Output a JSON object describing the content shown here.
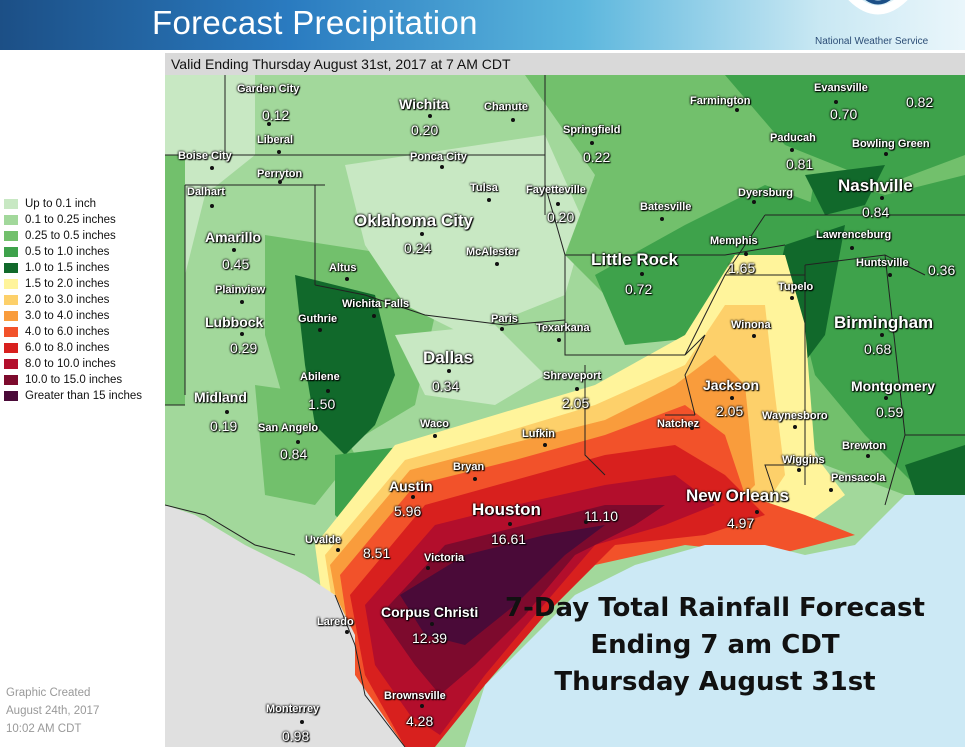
{
  "header": {
    "title": "Forecast Precipitation",
    "agency": "National Weather Service"
  },
  "valid_time": "Valid Ending Thursday August 31st, 2017 at 7 AM CDT",
  "legend": [
    {
      "label": "Up to 0.1 inch",
      "color": "#c8e8c3"
    },
    {
      "label": "0.1 to 0.25 inches",
      "color": "#a2d89b"
    },
    {
      "label": "0.25 to 0.5 inches",
      "color": "#72c06c"
    },
    {
      "label": "0.5 to 1.0 inches",
      "color": "#3ea24b"
    },
    {
      "label": "1.0 to 1.5 inches",
      "color": "#11692b"
    },
    {
      "label": "1.5 to 2.0 inches",
      "color": "#fff49b"
    },
    {
      "label": "2.0 to 3.0 inches",
      "color": "#fdd06a"
    },
    {
      "label": "3.0 to 4.0 inches",
      "color": "#f99c3c"
    },
    {
      "label": "4.0 to 6.0 inches",
      "color": "#f2522a"
    },
    {
      "label": "6.0 to 8.0 inches",
      "color": "#d8201e"
    },
    {
      "label": "8.0 to 10.0 inches",
      "color": "#b30e2c"
    },
    {
      "label": "10.0 to 15.0 inches",
      "color": "#7d0a2d"
    },
    {
      "label": "Greater than 15 inches",
      "color": "#4a0a38"
    }
  ],
  "created": [
    "Graphic Created",
    "August 24th, 2017",
    "10:02 AM CDT"
  ],
  "overlay": [
    "7-Day Total Rainfall Forecast",
    "Ending 7 am CDT",
    "Thursday August 31st"
  ],
  "cities": [
    {
      "name": "Garden City",
      "value": "0.12",
      "size": "small"
    },
    {
      "name": "Wichita",
      "value": "0.20",
      "size": "med"
    },
    {
      "name": "Chanute",
      "value": "",
      "size": "small"
    },
    {
      "name": "Farmington",
      "value": "",
      "size": "small"
    },
    {
      "name": "Evansville",
      "value": "0.70",
      "size": "small"
    },
    {
      "name": "",
      "value": "0.82",
      "size": "small"
    },
    {
      "name": "Springfield",
      "value": "0.22",
      "size": "small"
    },
    {
      "name": "Liberal",
      "value": "",
      "size": "small"
    },
    {
      "name": "Paducah",
      "value": "0.81",
      "size": "small"
    },
    {
      "name": "Bowling Green",
      "value": "",
      "size": "small"
    },
    {
      "name": "Boise City",
      "value": "",
      "size": "small"
    },
    {
      "name": "Ponca City",
      "value": "",
      "size": "small"
    },
    {
      "name": "Perryton",
      "value": "",
      "size": "small"
    },
    {
      "name": "Nashville",
      "value": "0.84",
      "size": "big"
    },
    {
      "name": "Dalhart",
      "value": "",
      "size": "small"
    },
    {
      "name": "Tulsa",
      "value": "",
      "size": "small"
    },
    {
      "name": "Fayetteville",
      "value": "0.20",
      "size": "small"
    },
    {
      "name": "Dyersburg",
      "value": "",
      "size": "small"
    },
    {
      "name": "Oklahoma City",
      "value": "0.24",
      "size": "big"
    },
    {
      "name": "Batesville",
      "value": "",
      "size": "small"
    },
    {
      "name": "Amarillo",
      "value": "0.45",
      "size": "med"
    },
    {
      "name": "Lawrenceburg",
      "value": "",
      "size": "small"
    },
    {
      "name": "Memphis",
      "value": "1.65",
      "size": "small"
    },
    {
      "name": "McAlester",
      "value": "",
      "size": "small"
    },
    {
      "name": "Little Rock",
      "value": "0.72",
      "size": "big"
    },
    {
      "name": "Huntsville",
      "value": "",
      "size": "small"
    },
    {
      "name": "",
      "value": "0.36",
      "size": "small"
    },
    {
      "name": "Altus",
      "value": "",
      "size": "small"
    },
    {
      "name": "Tupelo",
      "value": "",
      "size": "small"
    },
    {
      "name": "Plainview",
      "value": "",
      "size": "small"
    },
    {
      "name": "Wichita Falls",
      "value": "",
      "size": "small"
    },
    {
      "name": "Paris",
      "value": "",
      "size": "small"
    },
    {
      "name": "Lubbock",
      "value": "0.29",
      "size": "med"
    },
    {
      "name": "Guthrie",
      "value": "",
      "size": "small"
    },
    {
      "name": "Texarkana",
      "value": "",
      "size": "small"
    },
    {
      "name": "Winona",
      "value": "",
      "size": "small"
    },
    {
      "name": "Birmingham",
      "value": "0.68",
      "size": "big"
    },
    {
      "name": "Dallas",
      "value": "0.34",
      "size": "big"
    },
    {
      "name": "Abilene",
      "value": "1.50",
      "size": "small"
    },
    {
      "name": "Shreveport",
      "value": "2.05",
      "size": "small"
    },
    {
      "name": "Jackson",
      "value": "2.05",
      "size": "med"
    },
    {
      "name": "Montgomery",
      "value": "0.59",
      "size": "med"
    },
    {
      "name": "Midland",
      "value": "0.19",
      "size": "med"
    },
    {
      "name": "Waynesboro",
      "value": "",
      "size": "small"
    },
    {
      "name": "San Angelo",
      "value": "0.84",
      "size": "small"
    },
    {
      "name": "Waco",
      "value": "",
      "size": "small"
    },
    {
      "name": "Natchez",
      "value": "",
      "size": "small"
    },
    {
      "name": "Lufkin",
      "value": "",
      "size": "small"
    },
    {
      "name": "Brewton",
      "value": "",
      "size": "small"
    },
    {
      "name": "Bryan",
      "value": "",
      "size": "small"
    },
    {
      "name": "Wiggins",
      "value": "",
      "size": "small"
    },
    {
      "name": "Pensacola",
      "value": "",
      "size": "small"
    },
    {
      "name": "Austin",
      "value": "5.96",
      "size": "med"
    },
    {
      "name": "New Orleans",
      "value": "4.97",
      "size": "big"
    },
    {
      "name": "Houston",
      "value": "16.61",
      "size": "big"
    },
    {
      "name": "",
      "value": "11.10",
      "size": "small"
    },
    {
      "name": "Uvalde",
      "value": "",
      "size": "small"
    },
    {
      "name": "",
      "value": "8.51",
      "size": "small"
    },
    {
      "name": "Victoria",
      "value": "",
      "size": "small"
    },
    {
      "name": "Corpus Christi",
      "value": "12.39",
      "size": "med"
    },
    {
      "name": "Laredo",
      "value": "",
      "size": "small"
    },
    {
      "name": "Brownsville",
      "value": "4.28",
      "size": "small"
    },
    {
      "name": "Monterrey",
      "value": "0.98",
      "size": "small"
    }
  ]
}
